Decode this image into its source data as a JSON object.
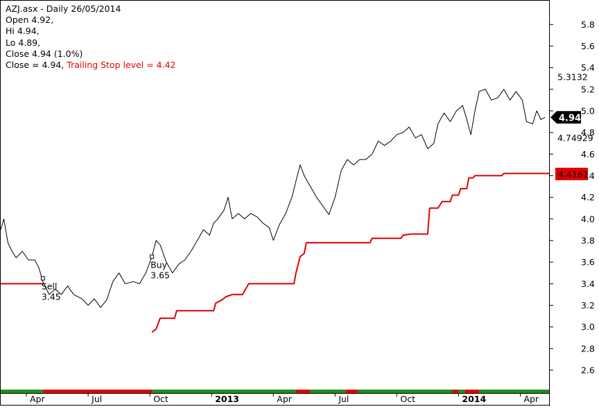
{
  "header": {
    "title": "AZJ.asx - Daily 26/05/2014",
    "open": "Open 4.92,",
    "hi": "Hi 4.94,",
    "lo": "Lo 4.89,",
    "close": "Close 4.94 (1.0%)",
    "close_eq": "Close = 4.94,",
    "trailing_text": "Trailing Stop level = 4.42"
  },
  "colors": {
    "price": "#000000",
    "stop": "#e00000",
    "bar_green": "#1e8e1e",
    "bar_red": "#e00000"
  },
  "chart_data": {
    "type": "line",
    "title": "AZJ.asx - Daily 26/05/2014",
    "ylim": [
      2.42,
      6.02
    ],
    "y_ticks": [
      2.6,
      2.8,
      3.0,
      3.2,
      3.4,
      3.6,
      3.8,
      4.0,
      4.2,
      4.4,
      4.6,
      4.8,
      5.0,
      5.2,
      5.4,
      5.6,
      5.8
    ],
    "x_ticks": [
      "Apr",
      "Jul",
      "Oct",
      "2013",
      "Apr",
      "Jul",
      "Oct",
      "2014",
      "Apr"
    ],
    "x_tick_pos": [
      0.5,
      3.5,
      6.5,
      9.5,
      12.5,
      15.5,
      18.5,
      21.5,
      24.5
    ],
    "xlim": [
      -0.75,
      25.9
    ],
    "series": [
      {
        "id": "close",
        "points": [
          [
            -0.75,
            3.9
          ],
          [
            -0.6,
            4.0
          ],
          [
            -0.4,
            3.78
          ],
          [
            -0.2,
            3.7
          ],
          [
            0.0,
            3.64
          ],
          [
            0.3,
            3.7
          ],
          [
            0.6,
            3.62
          ],
          [
            0.9,
            3.62
          ],
          [
            1.1,
            3.55
          ],
          [
            1.3,
            3.42
          ],
          [
            1.6,
            3.3
          ],
          [
            1.9,
            3.35
          ],
          [
            2.2,
            3.3
          ],
          [
            2.5,
            3.38
          ],
          [
            2.8,
            3.3
          ],
          [
            3.2,
            3.26
          ],
          [
            3.5,
            3.2
          ],
          [
            3.8,
            3.26
          ],
          [
            4.1,
            3.18
          ],
          [
            4.4,
            3.25
          ],
          [
            4.7,
            3.42
          ],
          [
            5.0,
            3.5
          ],
          [
            5.3,
            3.4
          ],
          [
            5.7,
            3.42
          ],
          [
            6.0,
            3.4
          ],
          [
            6.3,
            3.5
          ],
          [
            6.6,
            3.65
          ],
          [
            6.8,
            3.8
          ],
          [
            7.0,
            3.76
          ],
          [
            7.3,
            3.6
          ],
          [
            7.6,
            3.5
          ],
          [
            7.9,
            3.58
          ],
          [
            8.2,
            3.62
          ],
          [
            8.5,
            3.7
          ],
          [
            8.8,
            3.8
          ],
          [
            9.1,
            3.9
          ],
          [
            9.4,
            3.85
          ],
          [
            9.6,
            3.96
          ],
          [
            9.8,
            4.0
          ],
          [
            10.1,
            4.08
          ],
          [
            10.3,
            4.2
          ],
          [
            10.5,
            4.0
          ],
          [
            10.8,
            4.05
          ],
          [
            11.1,
            4.0
          ],
          [
            11.4,
            4.05
          ],
          [
            11.7,
            4.02
          ],
          [
            12.0,
            3.96
          ],
          [
            12.3,
            3.92
          ],
          [
            12.5,
            3.8
          ],
          [
            12.8,
            3.95
          ],
          [
            13.1,
            4.05
          ],
          [
            13.4,
            4.2
          ],
          [
            13.6,
            4.35
          ],
          [
            13.8,
            4.5
          ],
          [
            14.0,
            4.4
          ],
          [
            14.3,
            4.3
          ],
          [
            14.6,
            4.2
          ],
          [
            14.9,
            4.12
          ],
          [
            15.2,
            4.04
          ],
          [
            15.5,
            4.2
          ],
          [
            15.8,
            4.45
          ],
          [
            16.1,
            4.55
          ],
          [
            16.4,
            4.5
          ],
          [
            16.7,
            4.55
          ],
          [
            17.0,
            4.55
          ],
          [
            17.3,
            4.6
          ],
          [
            17.6,
            4.72
          ],
          [
            17.9,
            4.68
          ],
          [
            18.2,
            4.72
          ],
          [
            18.5,
            4.78
          ],
          [
            18.8,
            4.8
          ],
          [
            19.1,
            4.85
          ],
          [
            19.4,
            4.75
          ],
          [
            19.7,
            4.78
          ],
          [
            20.0,
            4.65
          ],
          [
            20.3,
            4.7
          ],
          [
            20.5,
            4.88
          ],
          [
            20.8,
            4.98
          ],
          [
            21.1,
            4.9
          ],
          [
            21.4,
            5.0
          ],
          [
            21.7,
            5.05
          ],
          [
            21.9,
            4.92
          ],
          [
            22.1,
            4.78
          ],
          [
            22.3,
            5.0
          ],
          [
            22.5,
            5.18
          ],
          [
            22.8,
            5.2
          ],
          [
            23.1,
            5.1
          ],
          [
            23.4,
            5.12
          ],
          [
            23.7,
            5.2
          ],
          [
            24.0,
            5.1
          ],
          [
            24.3,
            5.18
          ],
          [
            24.6,
            5.1
          ],
          [
            24.8,
            4.9
          ],
          [
            25.1,
            4.88
          ],
          [
            25.3,
            5.0
          ],
          [
            25.5,
            4.92
          ],
          [
            25.7,
            4.94
          ]
        ]
      },
      {
        "id": "trailing-stop",
        "name": "Trailing Stop",
        "points": [
          [
            -0.75,
            3.4
          ],
          [
            1.3,
            3.4
          ],
          [
            1.3,
            null
          ],
          [
            6.6,
            2.95
          ],
          [
            6.8,
            2.98
          ],
          [
            7.0,
            3.08
          ],
          [
            7.7,
            3.08
          ],
          [
            7.8,
            3.15
          ],
          [
            9.6,
            3.15
          ],
          [
            9.7,
            3.22
          ],
          [
            10.0,
            3.25
          ],
          [
            10.2,
            3.28
          ],
          [
            10.5,
            3.3
          ],
          [
            11.0,
            3.3
          ],
          [
            11.3,
            3.4
          ],
          [
            13.5,
            3.4
          ],
          [
            13.6,
            3.5
          ],
          [
            13.8,
            3.65
          ],
          [
            14.0,
            3.68
          ],
          [
            14.1,
            3.78
          ],
          [
            17.2,
            3.78
          ],
          [
            17.3,
            3.82
          ],
          [
            18.7,
            3.82
          ],
          [
            18.8,
            3.85
          ],
          [
            19.2,
            3.86
          ],
          [
            20.0,
            3.86
          ],
          [
            20.1,
            4.1
          ],
          [
            20.5,
            4.1
          ],
          [
            20.7,
            4.16
          ],
          [
            21.1,
            4.16
          ],
          [
            21.2,
            4.22
          ],
          [
            21.5,
            4.22
          ],
          [
            21.6,
            4.28
          ],
          [
            21.9,
            4.28
          ],
          [
            22.0,
            4.38
          ],
          [
            22.2,
            4.38
          ],
          [
            22.3,
            4.4
          ],
          [
            23.6,
            4.4
          ],
          [
            23.7,
            4.42
          ],
          [
            25.9,
            4.42
          ]
        ]
      }
    ],
    "annotations": [
      {
        "text": "Sell",
        "price": "3.45",
        "x": 1.3,
        "y": 3.45
      },
      {
        "text": "Buy",
        "price": "3.65",
        "x": 6.6,
        "y": 3.65
      }
    ],
    "axis_labels": [
      {
        "value": 5.3132,
        "text": "5.3132",
        "style": "plain"
      },
      {
        "value": 4.94,
        "text": "4.94",
        "style": "black-flag"
      },
      {
        "value": 4.74929,
        "text": "4.74929",
        "style": "plain"
      },
      {
        "value": 4.4161,
        "text": "4.4161",
        "style": "red-box"
      }
    ],
    "signal_bar": [
      [
        -0.75,
        1.3,
        "green"
      ],
      [
        1.3,
        6.6,
        "red"
      ],
      [
        6.6,
        13.6,
        "green"
      ],
      [
        13.6,
        14.3,
        "red"
      ],
      [
        14.3,
        16.0,
        "green"
      ],
      [
        16.0,
        16.6,
        "red"
      ],
      [
        16.6,
        21.2,
        "green"
      ],
      [
        21.2,
        21.5,
        "red"
      ],
      [
        21.5,
        21.8,
        "green"
      ],
      [
        21.8,
        22.5,
        "red"
      ],
      [
        22.5,
        25.9,
        "green"
      ]
    ]
  }
}
